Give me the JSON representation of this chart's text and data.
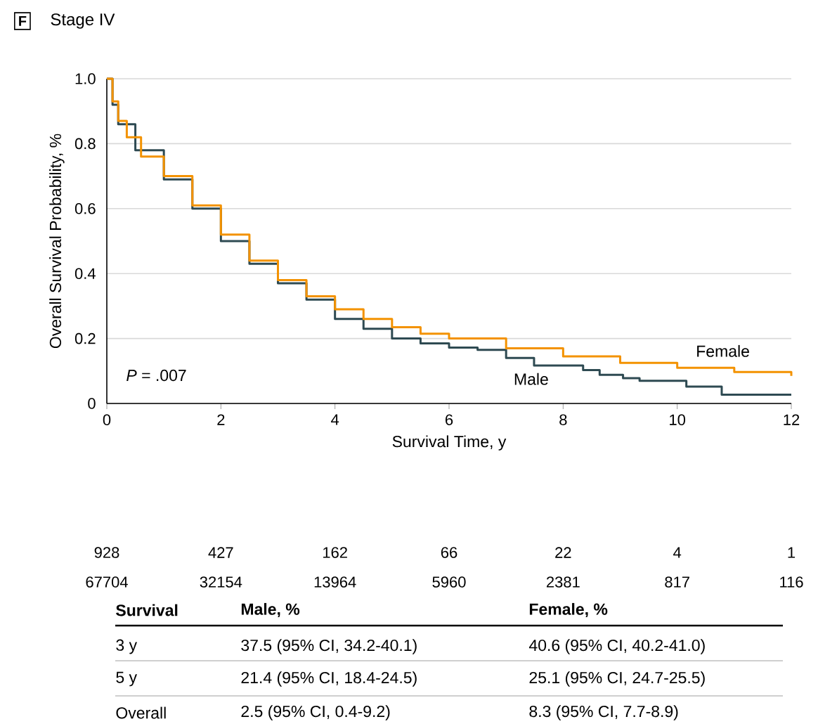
{
  "chart_data": {
    "type": "step",
    "title": "Stage IV",
    "xlabel": "Survival Time, y",
    "ylabel": "Overall Survival Probability, %",
    "series": [
      {
        "name": "Male",
        "color": "#2e4a52",
        "x": [
          0,
          0.1,
          0.2,
          0.5,
          1,
          1.5,
          2,
          2.5,
          3,
          3.5,
          4,
          4.5,
          5,
          5.5,
          6,
          6.5,
          7,
          7.49,
          8.35,
          8.64,
          9.05,
          9.34,
          10.16,
          10.78,
          12
        ],
        "values": [
          1,
          0.92,
          0.86,
          0.78,
          0.69,
          0.6,
          0.5,
          0.43,
          0.37,
          0.32,
          0.26,
          0.23,
          0.2,
          0.185,
          0.172,
          0.165,
          0.14,
          0.117,
          0.103,
          0.088,
          0.078,
          0.07,
          0.052,
          0.027,
          0.027
        ]
      },
      {
        "name": "Female",
        "color": "#f39200",
        "x": [
          0,
          0.1,
          0.2,
          0.35,
          0.6,
          1,
          1.5,
          2,
          2.5,
          3,
          3.5,
          4,
          4.5,
          5,
          5.5,
          6,
          7,
          8,
          9,
          10,
          11,
          12
        ],
        "values": [
          1,
          0.93,
          0.87,
          0.82,
          0.76,
          0.7,
          0.61,
          0.52,
          0.44,
          0.38,
          0.33,
          0.29,
          0.26,
          0.235,
          0.215,
          0.2,
          0.17,
          0.145,
          0.125,
          0.11,
          0.097,
          0.085
        ]
      }
    ],
    "xlim": [
      0,
      12
    ],
    "xticks": [
      0,
      2,
      4,
      6,
      8,
      10,
      12
    ],
    "ylim": [
      0,
      1
    ],
    "yticks": [
      0,
      0.2,
      0.4,
      0.6,
      0.8,
      {
        "value": 1,
        "label": "1.0"
      }
    ],
    "grid": "y",
    "legend": false,
    "marker": "none",
    "line_style": "solid",
    "annotations": [
      "F",
      "*P* = .007",
      "928",
      "427",
      "162",
      "66",
      "22",
      "4",
      "1",
      "67704",
      "32154",
      "13964",
      "5960",
      "2381",
      "817",
      "116",
      "Survival",
      "Male, %",
      "Female, %",
      "3 y",
      "37.5 (95% CI, 34.2-40.1)",
      "40.6 (95% CI, 40.2-41.0)",
      "5 y",
      "21.4 (95% CI, 18.4-24.5)",
      "25.1 (95% CI, 24.7-25.5)",
      "Overall",
      "2.5 (95% CI, 0.4-9.2)",
      "8.3 (95% CI, 7.7-8.9)"
    ]
  }
}
